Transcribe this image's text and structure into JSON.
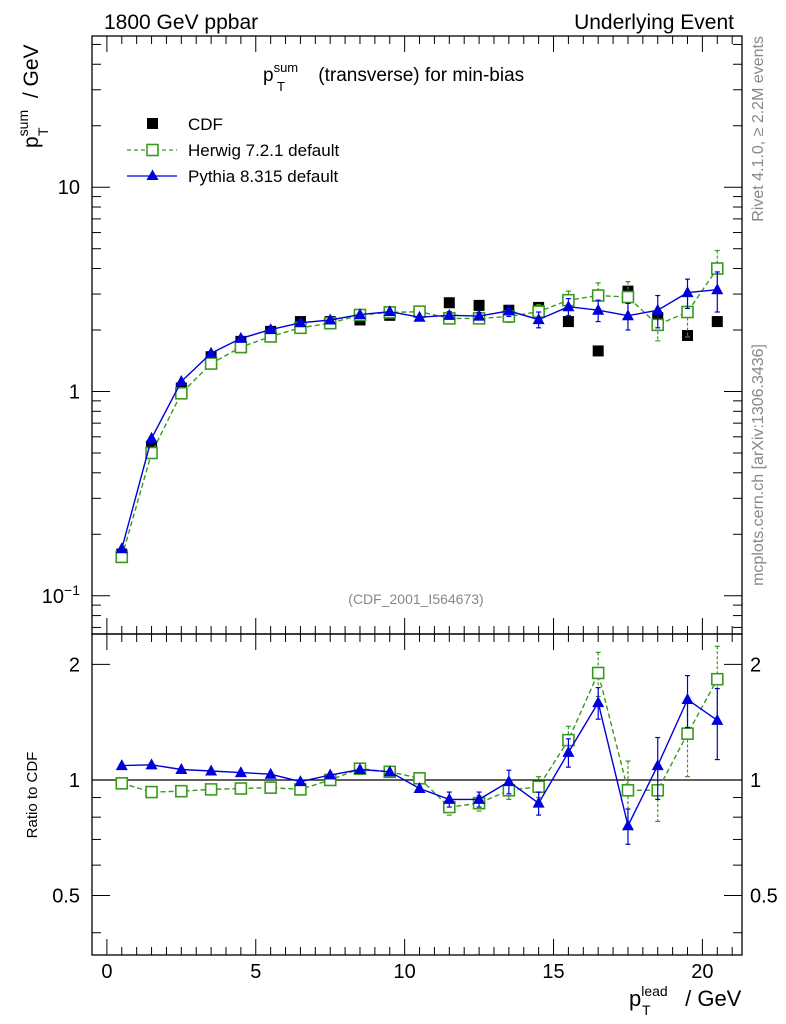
{
  "header": {
    "left": "1800 GeV ppbar",
    "right": "Underlying Event"
  },
  "side_text": {
    "top": "Rivet 4.1.0, ≥ 2.2M events",
    "bottom": "mcplots.cern.ch [arXiv:1306.3436]"
  },
  "chart_data": [
    {
      "type": "scatter",
      "panel": "main",
      "title": {
        "base": "p",
        "sup": "sum",
        "sub": "T",
        "rest": " (transverse) for min-bias"
      },
      "ylabel": {
        "base": "p",
        "sup": "sum",
        "sub": "T",
        "rest": " / GeV"
      },
      "yscale": "log",
      "ylim": [
        0.065,
        55
      ],
      "xlim": [
        -0.5,
        21.33
      ],
      "yticks": [
        {
          "value": 0.1,
          "label": "10",
          "exp": "−1"
        },
        {
          "value": 1,
          "label": "1",
          "exp": ""
        },
        {
          "value": 10,
          "label": "10",
          "exp": ""
        }
      ],
      "watermark": "(CDF_2001_I564673)",
      "legend": {
        "position": "top-left",
        "entries": [
          "CDF",
          "Herwig 7.2.1 default",
          "Pythia 8.315 default"
        ]
      },
      "x": [
        0.5,
        1.5,
        2.5,
        3.5,
        4.5,
        5.5,
        6.5,
        7.5,
        8.5,
        9.5,
        10.5,
        11.5,
        12.5,
        13.5,
        14.5,
        15.5,
        16.5,
        17.5,
        18.5,
        19.5,
        20.5
      ],
      "series": [
        {
          "name": "CDF",
          "color": "#000000",
          "marker": "square-filled",
          "line": "none",
          "values": [
            0.16,
            0.54,
            1.04,
            1.48,
            1.76,
            1.97,
            2.2,
            2.2,
            2.24,
            2.36,
            2.44,
            2.72,
            2.64,
            2.5,
            2.58,
            2.2,
            1.58,
            3.1,
            2.3,
            1.88,
            2.2
          ],
          "errors": [
            0,
            0,
            0,
            0,
            0,
            0,
            0,
            0,
            0,
            0,
            0,
            0,
            0,
            0,
            0,
            0,
            0,
            0,
            0,
            0,
            0
          ]
        },
        {
          "name": "Herwig 7.2.1 default",
          "color": "#3a9a1e",
          "marker": "square-open",
          "line": "dashed",
          "values": [
            0.155,
            0.5,
            0.98,
            1.37,
            1.65,
            1.86,
            2.05,
            2.16,
            2.37,
            2.44,
            2.46,
            2.28,
            2.28,
            2.33,
            2.46,
            2.8,
            2.95,
            2.9,
            2.12,
            2.45,
            4.0
          ],
          "errors": [
            0,
            0,
            0,
            0,
            0,
            0,
            0,
            0,
            0,
            0,
            0,
            0.12,
            0.12,
            0.15,
            0.2,
            0.3,
            0.45,
            0.55,
            0.35,
            0.6,
            0.9
          ]
        },
        {
          "name": "Pythia 8.315 default",
          "color": "#0000dd",
          "marker": "triangle-filled",
          "line": "solid",
          "values": [
            0.17,
            0.59,
            1.12,
            1.54,
            1.82,
            2.01,
            2.17,
            2.24,
            2.38,
            2.46,
            2.31,
            2.36,
            2.34,
            2.48,
            2.25,
            2.6,
            2.5,
            2.35,
            2.5,
            3.05,
            3.15
          ],
          "errors": [
            0,
            0,
            0,
            0,
            0,
            0,
            0,
            0,
            0,
            0,
            0,
            0.1,
            0.1,
            0.15,
            0.2,
            0.25,
            0.3,
            0.35,
            0.45,
            0.5,
            0.7
          ]
        }
      ]
    },
    {
      "type": "scatter",
      "panel": "ratio",
      "ylabel": "Ratio to CDF",
      "xlabel": {
        "base": "p",
        "sup": "lead",
        "sub": "T",
        "rest": " / GeV"
      },
      "yscale": "log",
      "ylim": [
        0.35,
        2.4
      ],
      "xlim": [
        -0.5,
        21.33
      ],
      "reference_line": 1,
      "xticks": [
        {
          "value": 0,
          "label": "0"
        },
        {
          "value": 5,
          "label": "5"
        },
        {
          "value": 10,
          "label": "10"
        },
        {
          "value": 15,
          "label": "15"
        },
        {
          "value": 20,
          "label": "20"
        }
      ],
      "yticks": [
        {
          "value": 0.5,
          "label": "0.5"
        },
        {
          "value": 1,
          "label": "1"
        },
        {
          "value": 2,
          "label": "2"
        }
      ],
      "x": [
        0.5,
        1.5,
        2.5,
        3.5,
        4.5,
        5.5,
        6.5,
        7.5,
        8.5,
        9.5,
        10.5,
        11.5,
        12.5,
        13.5,
        14.5,
        15.5,
        16.5,
        17.5,
        18.5,
        19.5,
        20.5
      ],
      "series": [
        {
          "name": "Herwig 7.2.1 default",
          "color": "#3a9a1e",
          "marker": "square-open",
          "line": "dashed",
          "values": [
            0.98,
            0.93,
            0.935,
            0.945,
            0.95,
            0.955,
            0.945,
            1.0,
            1.07,
            1.05,
            1.01,
            0.85,
            0.87,
            0.94,
            0.96,
            1.27,
            1.9,
            0.94,
            0.94,
            1.32,
            1.83
          ],
          "errors": [
            0,
            0,
            0,
            0,
            0,
            0,
            0,
            0,
            0,
            0,
            0,
            0.04,
            0.04,
            0.05,
            0.06,
            0.11,
            0.25,
            0.18,
            0.16,
            0.3,
            0.4
          ]
        },
        {
          "name": "Pythia 8.315 default",
          "color": "#0000dd",
          "marker": "triangle-filled",
          "line": "solid",
          "values": [
            1.09,
            1.095,
            1.065,
            1.055,
            1.045,
            1.035,
            0.99,
            1.03,
            1.065,
            1.05,
            0.95,
            0.89,
            0.89,
            0.99,
            0.87,
            1.18,
            1.59,
            0.76,
            1.09,
            1.62,
            1.43
          ],
          "errors": [
            0,
            0,
            0,
            0,
            0,
            0,
            0,
            0,
            0,
            0,
            0,
            0.04,
            0.04,
            0.07,
            0.06,
            0.1,
            0.15,
            0.08,
            0.2,
            0.25,
            0.3
          ]
        }
      ]
    }
  ]
}
